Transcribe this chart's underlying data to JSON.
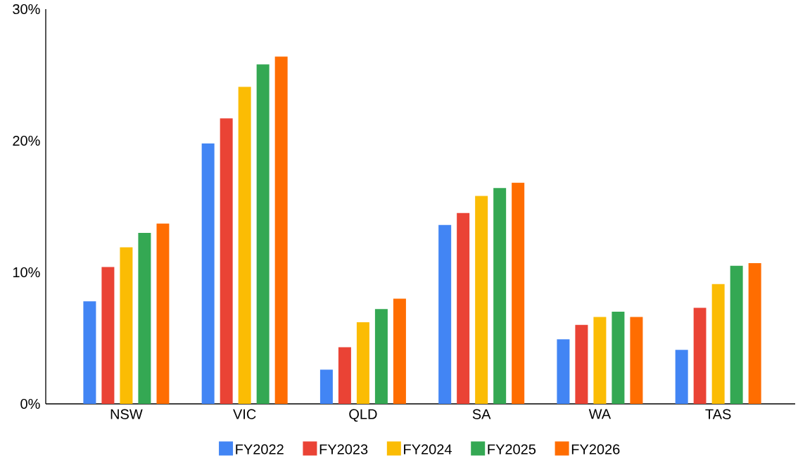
{
  "chart_data": {
    "type": "bar",
    "categories": [
      "NSW",
      "VIC",
      "QLD",
      "SA",
      "WA",
      "TAS"
    ],
    "series": [
      {
        "name": "FY2022",
        "color": "#4285f4",
        "values": [
          7.8,
          19.8,
          2.6,
          13.6,
          4.9,
          4.1
        ]
      },
      {
        "name": "FY2023",
        "color": "#ea4335",
        "values": [
          10.4,
          21.7,
          4.3,
          14.5,
          6.0,
          7.3
        ]
      },
      {
        "name": "FY2024",
        "color": "#fbbc04",
        "values": [
          11.9,
          24.1,
          6.2,
          15.8,
          6.6,
          9.1
        ]
      },
      {
        "name": "FY2025",
        "color": "#34a853",
        "values": [
          13.0,
          25.8,
          7.2,
          16.4,
          7.0,
          10.5
        ]
      },
      {
        "name": "FY2026",
        "color": "#ff6d01",
        "values": [
          13.7,
          26.4,
          8.0,
          16.8,
          6.6,
          10.7
        ]
      }
    ],
    "ylim": [
      0,
      30
    ],
    "yticks": [
      {
        "value": 0,
        "label": "0%"
      },
      {
        "value": 10,
        "label": "10%"
      },
      {
        "value": 20,
        "label": "20%"
      },
      {
        "value": 30,
        "label": "30%"
      }
    ],
    "legend": "bottom"
  }
}
